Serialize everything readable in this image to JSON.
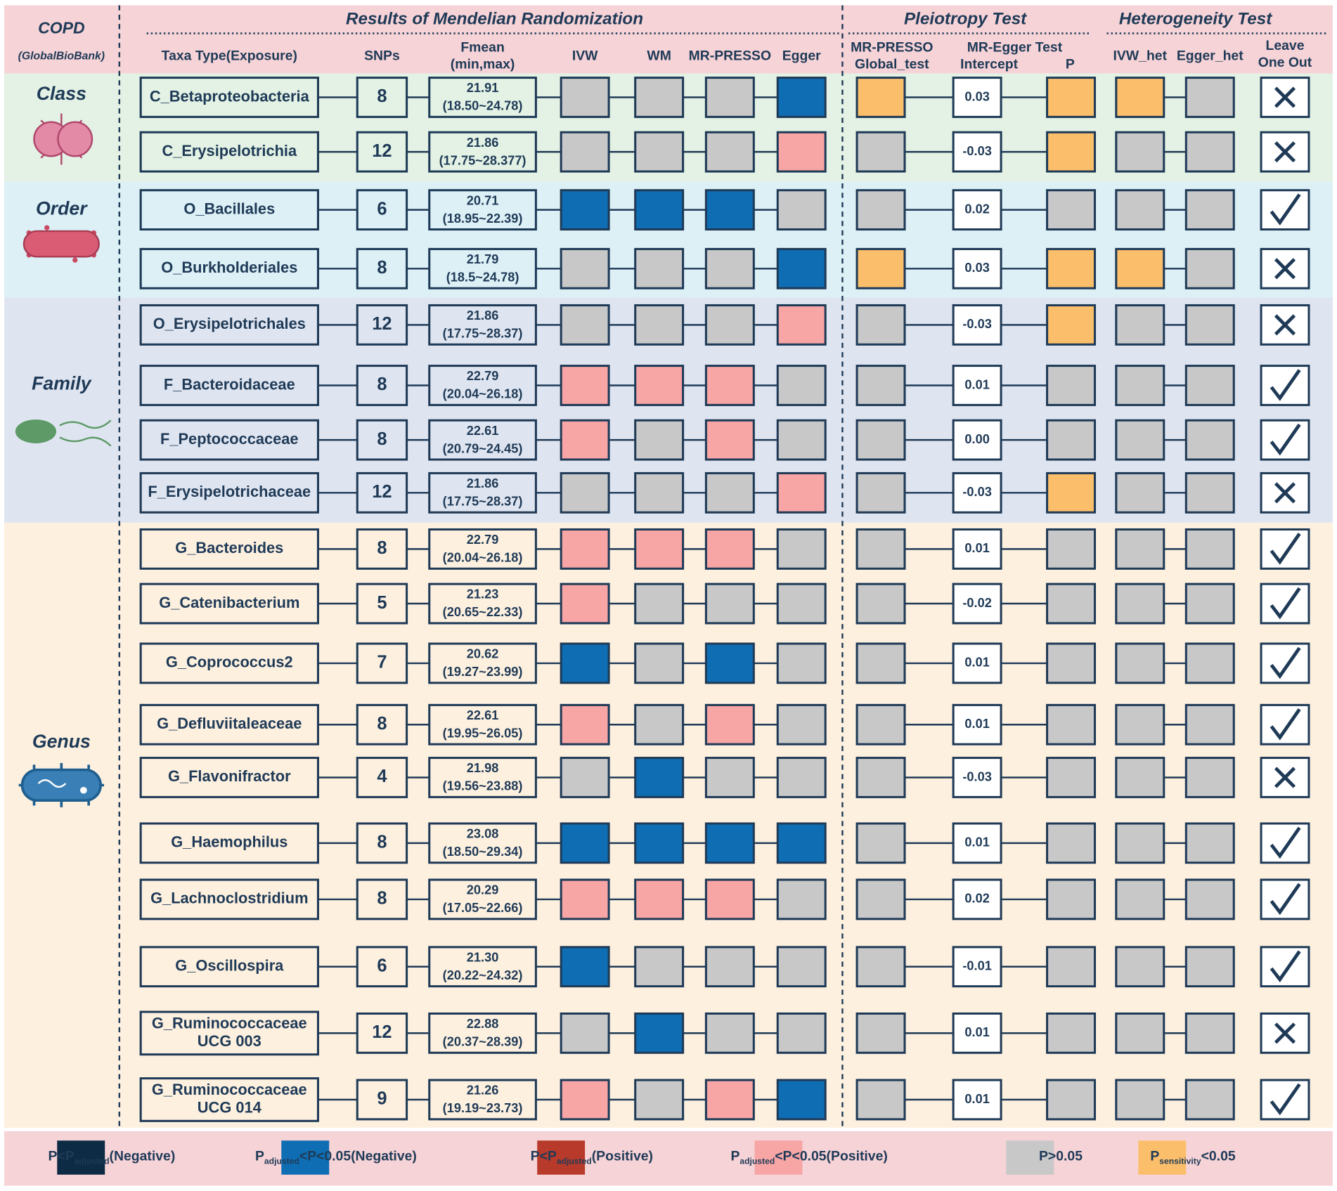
{
  "header": {
    "disease": "COPD",
    "source": "(GlobalBioBank)",
    "sections": [
      "Results of Mendelian Randomization",
      "Pleiotropy Test",
      "Heterogeneity Test"
    ],
    "columns": [
      [
        "Taxa Type(Exposure)"
      ],
      [
        "SNPs"
      ],
      [
        "Fmean",
        "(min,max)"
      ],
      [
        "IVW"
      ],
      [
        "WM"
      ],
      [
        "MR-PRESSO"
      ],
      [
        "Egger"
      ],
      [
        "MR-PRESSO",
        "Global_test"
      ],
      [
        "MR-Egger Test"
      ],
      [
        "Intercept"
      ],
      [
        "P"
      ],
      [
        "IVW_het"
      ],
      [
        "Egger_het"
      ],
      [
        "Leave",
        "One Out"
      ]
    ]
  },
  "palette": {
    "navy": "#0d2b45",
    "blue": "#0f6eb3",
    "red": "#b83a2a",
    "pink": "#f7a5a5",
    "gray": "#c8c8c8",
    "orange": "#fbbf6c"
  },
  "groups": [
    {
      "name": "Class",
      "color": "#e3f2e4",
      "rows": [
        {
          "taxa": [
            "C_Betaproteobacteria"
          ],
          "snps": 8,
          "fmean": "21.91",
          "range": "(18.50~24.78)",
          "mr": [
            "gray",
            "gray",
            "gray",
            "blue"
          ],
          "global": "orange",
          "intercept": "0.03",
          "p": "orange",
          "het": [
            "orange",
            "gray"
          ],
          "loo": "cross"
        },
        {
          "taxa": [
            "C_Erysipelotrichia"
          ],
          "snps": 12,
          "fmean": "21.86",
          "range": "(17.75~28.377)",
          "mr": [
            "gray",
            "gray",
            "gray",
            "pink"
          ],
          "global": "gray",
          "intercept": "-0.03",
          "p": "orange",
          "het": [
            "gray",
            "gray"
          ],
          "loo": "cross"
        }
      ]
    },
    {
      "name": "Order",
      "color": "#dcf0f6",
      "rows": [
        {
          "taxa": [
            "O_Bacillales"
          ],
          "snps": 6,
          "fmean": "20.71",
          "range": "(18.95~22.39)",
          "mr": [
            "blue",
            "blue",
            "blue",
            "gray"
          ],
          "global": "gray",
          "intercept": "0.02",
          "p": "gray",
          "het": [
            "gray",
            "gray"
          ],
          "loo": "check"
        },
        {
          "taxa": [
            "O_Burkholderiales"
          ],
          "snps": 8,
          "fmean": "21.79",
          "range": "(18.5~24.78)",
          "mr": [
            "gray",
            "gray",
            "gray",
            "blue"
          ],
          "global": "orange",
          "intercept": "0.03",
          "p": "orange",
          "het": [
            "orange",
            "gray"
          ],
          "loo": "cross"
        }
      ]
    },
    {
      "name": "Family",
      "color": "#dfe5f0",
      "rows": [
        {
          "taxa": [
            "O_Erysipelotrichales"
          ],
          "snps": 12,
          "fmean": "21.86",
          "range": "(17.75~28.37)",
          "mr": [
            "gray",
            "gray",
            "gray",
            "pink"
          ],
          "global": "gray",
          "intercept": "-0.03",
          "p": "orange",
          "het": [
            "gray",
            "gray"
          ],
          "loo": "cross"
        },
        {
          "taxa": [
            "F_Bacteroidaceae"
          ],
          "snps": 8,
          "fmean": "22.79",
          "range": "(20.04~26.18)",
          "mr": [
            "pink",
            "pink",
            "pink",
            "gray"
          ],
          "global": "gray",
          "intercept": "0.01",
          "p": "gray",
          "het": [
            "gray",
            "gray"
          ],
          "loo": "check"
        },
        {
          "taxa": [
            "F_Peptococcaceae"
          ],
          "snps": 8,
          "fmean": "22.61",
          "range": "(20.79~24.45)",
          "mr": [
            "pink",
            "gray",
            "pink",
            "gray"
          ],
          "global": "gray",
          "intercept": "0.00",
          "p": "gray",
          "het": [
            "gray",
            "gray"
          ],
          "loo": "check"
        },
        {
          "taxa": [
            "F_Erysipelotrichaceae"
          ],
          "snps": 12,
          "fmean": "21.86",
          "range": "(17.75~28.37)",
          "mr": [
            "gray",
            "gray",
            "gray",
            "pink"
          ],
          "global": "gray",
          "intercept": "-0.03",
          "p": "orange",
          "het": [
            "gray",
            "gray"
          ],
          "loo": "cross"
        }
      ]
    },
    {
      "name": "Genus",
      "color": "#fdf0df",
      "rows": [
        {
          "taxa": [
            "G_Bacteroides"
          ],
          "snps": 8,
          "fmean": "22.79",
          "range": "(20.04~26.18)",
          "mr": [
            "pink",
            "pink",
            "pink",
            "gray"
          ],
          "global": "gray",
          "intercept": "0.01",
          "p": "gray",
          "het": [
            "gray",
            "gray"
          ],
          "loo": "check"
        },
        {
          "taxa": [
            "G_Catenibacterium"
          ],
          "snps": 5,
          "fmean": "21.23",
          "range": "(20.65~22.33)",
          "mr": [
            "pink",
            "gray",
            "gray",
            "gray"
          ],
          "global": "gray",
          "intercept": "-0.02",
          "p": "gray",
          "het": [
            "gray",
            "gray"
          ],
          "loo": "check"
        },
        {
          "taxa": [
            "G_Coprococcus2"
          ],
          "snps": 7,
          "fmean": "20.62",
          "range": "(19.27~23.99)",
          "mr": [
            "blue",
            "gray",
            "blue",
            "gray"
          ],
          "global": "gray",
          "intercept": "0.01",
          "p": "gray",
          "het": [
            "gray",
            "gray"
          ],
          "loo": "check"
        },
        {
          "taxa": [
            "G_Defluviitaleaceae"
          ],
          "snps": 8,
          "fmean": "22.61",
          "range": "(19.95~26.05)",
          "mr": [
            "pink",
            "gray",
            "pink",
            "gray"
          ],
          "global": "gray",
          "intercept": "0.01",
          "p": "gray",
          "het": [
            "gray",
            "gray"
          ],
          "loo": "check"
        },
        {
          "taxa": [
            "G_Flavonifractor"
          ],
          "snps": 4,
          "fmean": "21.98",
          "range": "(19.56~23.88)",
          "mr": [
            "gray",
            "blue",
            "gray",
            "gray"
          ],
          "global": "gray",
          "intercept": "-0.03",
          "p": "gray",
          "het": [
            "gray",
            "gray"
          ],
          "loo": "cross"
        },
        {
          "taxa": [
            "G_Haemophilus"
          ],
          "snps": 8,
          "fmean": "23.08",
          "range": "(18.50~29.34)",
          "mr": [
            "blue",
            "blue",
            "blue",
            "blue"
          ],
          "global": "gray",
          "intercept": "0.01",
          "p": "gray",
          "het": [
            "gray",
            "gray"
          ],
          "loo": "check"
        },
        {
          "taxa": [
            "G_Lachnoclostridium"
          ],
          "snps": 8,
          "fmean": "20.29",
          "range": "(17.05~22.66)",
          "mr": [
            "pink",
            "pink",
            "pink",
            "gray"
          ],
          "global": "gray",
          "intercept": "0.02",
          "p": "gray",
          "het": [
            "gray",
            "gray"
          ],
          "loo": "check"
        },
        {
          "taxa": [
            "G_Oscillospira"
          ],
          "snps": 6,
          "fmean": "21.30",
          "range": "(20.22~24.32)",
          "mr": [
            "blue",
            "gray",
            "gray",
            "gray"
          ],
          "global": "gray",
          "intercept": "-0.01",
          "p": "gray",
          "het": [
            "gray",
            "gray"
          ],
          "loo": "check"
        },
        {
          "taxa": [
            "G_Ruminococcaceae",
            "UCG 003"
          ],
          "snps": 12,
          "fmean": "22.88",
          "range": "(20.37~28.39)",
          "mr": [
            "gray",
            "blue",
            "gray",
            "gray"
          ],
          "global": "gray",
          "intercept": "0.01",
          "p": "gray",
          "het": [
            "gray",
            "gray"
          ],
          "loo": "cross"
        },
        {
          "taxa": [
            "G_Ruminococcaceae",
            "UCG 014"
          ],
          "snps": 9,
          "fmean": "21.26",
          "range": "(19.19~23.73)",
          "mr": [
            "pink",
            "gray",
            "pink",
            "blue"
          ],
          "global": "gray",
          "intercept": "0.01",
          "p": "gray",
          "het": [
            "gray",
            "gray"
          ],
          "loo": "check"
        }
      ]
    }
  ],
  "legend": [
    {
      "color": "navy",
      "text": [
        "P<P",
        "adjusted",
        "(Negative)"
      ]
    },
    {
      "color": "blue",
      "text": [
        "P",
        "adjusted",
        "<P<0.05(Negative)"
      ]
    },
    {
      "color": "red",
      "text": [
        "P<P",
        "adjusted",
        "(Positive)"
      ]
    },
    {
      "color": "pink",
      "text": [
        "P",
        "adjusted",
        "<P<0.05(Positive)"
      ]
    },
    {
      "color": "gray",
      "text": [
        "P>0.05"
      ]
    },
    {
      "color": "orange",
      "text": [
        "P",
        "sensitivity",
        "<0.05"
      ]
    }
  ]
}
